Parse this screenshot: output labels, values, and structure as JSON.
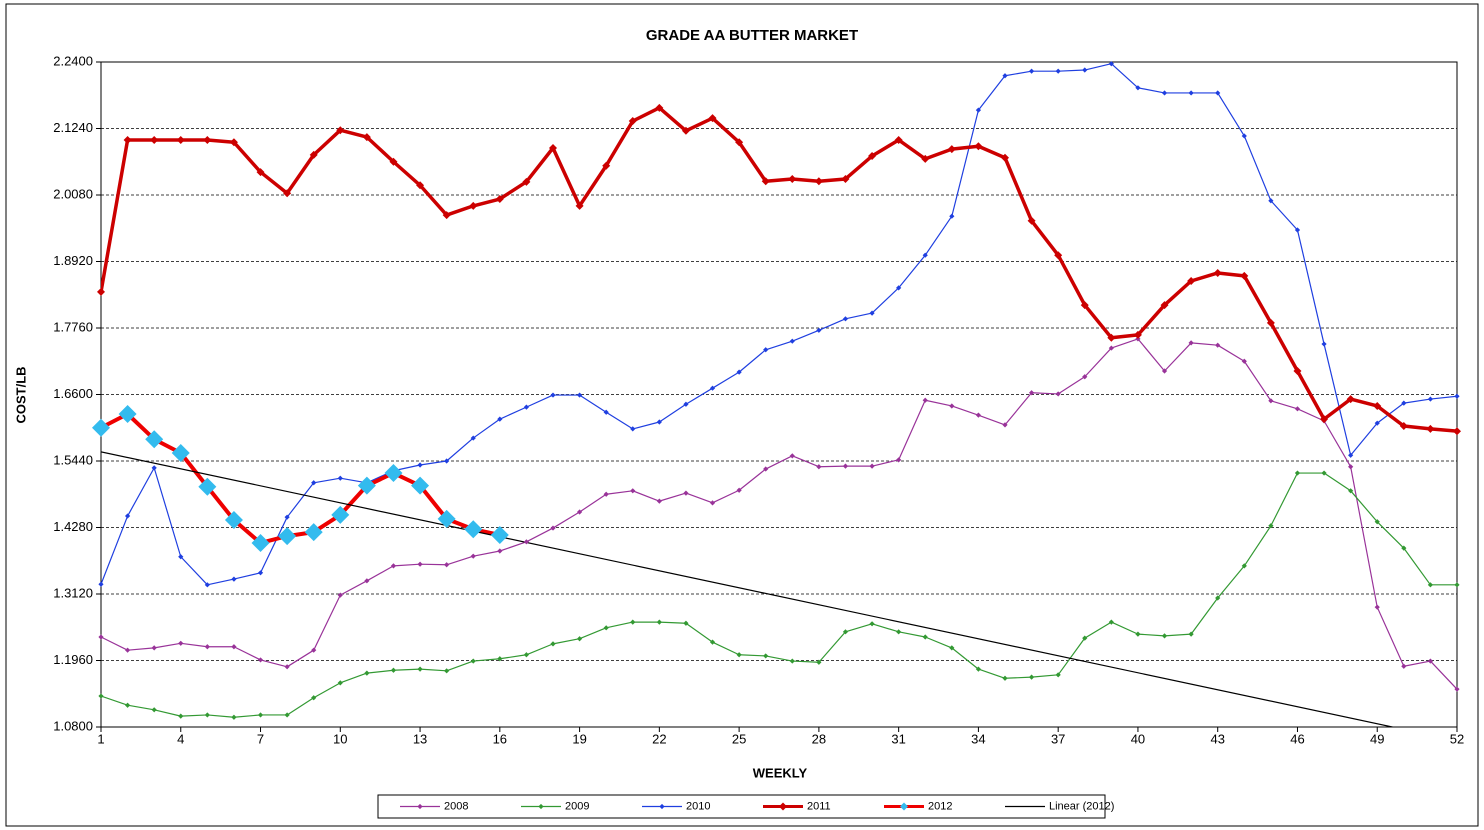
{
  "chart_data": {
    "type": "line",
    "title": "GRADE AA BUTTER MARKET",
    "x_label": "WEEKLY",
    "y_label": "COST/LB",
    "x": [
      1,
      2,
      3,
      4,
      5,
      6,
      7,
      8,
      9,
      10,
      11,
      12,
      13,
      14,
      15,
      16,
      17,
      18,
      19,
      20,
      21,
      22,
      23,
      24,
      25,
      26,
      27,
      28,
      29,
      30,
      31,
      32,
      33,
      34,
      35,
      36,
      37,
      38,
      39,
      40,
      41,
      42,
      43,
      44,
      45,
      46,
      47,
      48,
      49,
      50,
      51,
      52
    ],
    "xlim": [
      1,
      52
    ],
    "xticks": [
      1,
      4,
      7,
      10,
      13,
      16,
      19,
      22,
      25,
      28,
      31,
      34,
      37,
      40,
      43,
      46,
      49,
      52
    ],
    "ylim": [
      1.08,
      2.24
    ],
    "yticks": [
      {
        "value": 1.08,
        "label": "1.0800"
      },
      {
        "value": 1.196,
        "label": "1.1960"
      },
      {
        "value": 1.312,
        "label": "1.3120"
      },
      {
        "value": 1.428,
        "label": "1.4280"
      },
      {
        "value": 1.544,
        "label": "1.5440"
      },
      {
        "value": 1.66,
        "label": "1.6600"
      },
      {
        "value": 1.776,
        "label": "1.7760"
      },
      {
        "value": 1.892,
        "label": "1.8920"
      },
      {
        "value": 2.008,
        "label": "2.0080"
      },
      {
        "value": 2.124,
        "label": "2.1240"
      },
      {
        "value": 2.24,
        "label": "2.2400"
      }
    ],
    "grid": true,
    "legend": "bottom",
    "series": [
      {
        "name": "2008",
        "color": "#993399",
        "values": [
          1.237,
          1.214,
          1.218,
          1.226,
          1.22,
          1.22,
          1.197,
          1.185,
          1.214,
          1.31,
          1.335,
          1.361,
          1.364,
          1.363,
          1.378,
          1.387,
          1.403,
          1.427,
          1.455,
          1.486,
          1.492,
          1.474,
          1.488,
          1.471,
          1.493,
          1.53,
          1.553,
          1.534,
          1.535,
          1.535,
          1.546,
          1.65,
          1.64,
          1.624,
          1.607,
          1.663,
          1.661,
          1.691,
          1.741,
          1.757,
          1.701,
          1.75,
          1.746,
          1.718,
          1.649,
          1.635,
          1.614,
          1.534,
          1.289,
          1.186,
          1.195,
          1.146
        ]
      },
      {
        "name": "2009",
        "color": "#339933",
        "values": [
          1.134,
          1.118,
          1.11,
          1.099,
          1.101,
          1.097,
          1.101,
          1.101,
          1.131,
          1.157,
          1.174,
          1.179,
          1.181,
          1.178,
          1.195,
          1.199,
          1.206,
          1.225,
          1.234,
          1.253,
          1.263,
          1.263,
          1.261,
          1.228,
          1.206,
          1.204,
          1.195,
          1.193,
          1.246,
          1.26,
          1.246,
          1.237,
          1.218,
          1.181,
          1.165,
          1.167,
          1.171,
          1.235,
          1.263,
          1.242,
          1.239,
          1.242,
          1.305,
          1.361,
          1.431,
          1.523,
          1.523,
          1.492,
          1.438,
          1.392,
          1.328,
          1.328
        ]
      },
      {
        "name": "2010",
        "color": "#1f3fe0",
        "values": [
          1.329,
          1.448,
          1.532,
          1.377,
          1.328,
          1.338,
          1.349,
          1.446,
          1.506,
          1.514,
          1.506,
          1.527,
          1.537,
          1.544,
          1.584,
          1.617,
          1.638,
          1.659,
          1.659,
          1.629,
          1.6,
          1.612,
          1.643,
          1.671,
          1.699,
          1.738,
          1.753,
          1.772,
          1.792,
          1.802,
          1.846,
          1.903,
          1.971,
          2.156,
          2.216,
          2.224,
          2.224,
          2.226,
          2.237,
          2.195,
          2.186,
          2.186,
          2.186,
          2.111,
          1.998,
          1.947,
          1.748,
          1.554,
          1.61,
          1.645,
          1.652,
          1.657
        ]
      },
      {
        "name": "2011",
        "color": "#cc0000",
        "values": [
          1.839,
          2.104,
          2.104,
          2.104,
          2.104,
          2.1,
          2.048,
          2.011,
          2.078,
          2.121,
          2.109,
          2.066,
          2.025,
          1.973,
          1.989,
          2.001,
          2.031,
          2.09,
          1.989,
          2.059,
          2.137,
          2.16,
          2.12,
          2.142,
          2.1,
          2.032,
          2.036,
          2.032,
          2.036,
          2.076,
          2.104,
          2.071,
          2.088,
          2.093,
          2.073,
          1.963,
          1.903,
          1.816,
          1.759,
          1.764,
          1.816,
          1.858,
          1.872,
          1.867,
          1.785,
          1.701,
          1.617,
          1.652,
          1.64,
          1.605,
          1.6,
          1.596
        ]
      },
      {
        "name": "2012",
        "color": "#ee0000",
        "marker_color": "#33bbee",
        "values": [
          1.602,
          1.626,
          1.582,
          1.558,
          1.499,
          1.441,
          1.401,
          1.413,
          1.42,
          1.45,
          1.501,
          1.523,
          1.501,
          1.443,
          1.425,
          1.415,
          null,
          null,
          null,
          null,
          null,
          null,
          null,
          null,
          null,
          null,
          null,
          null,
          null,
          null,
          null,
          null,
          null,
          null,
          null,
          null,
          null,
          null,
          null,
          null,
          null,
          null,
          null,
          null,
          null,
          null,
          null,
          null,
          null,
          null,
          null,
          null
        ]
      },
      {
        "name": "Linear (2012)",
        "color": "#000000",
        "x": [
          1,
          52
        ],
        "values": [
          1.56,
          1.056
        ]
      }
    ]
  }
}
